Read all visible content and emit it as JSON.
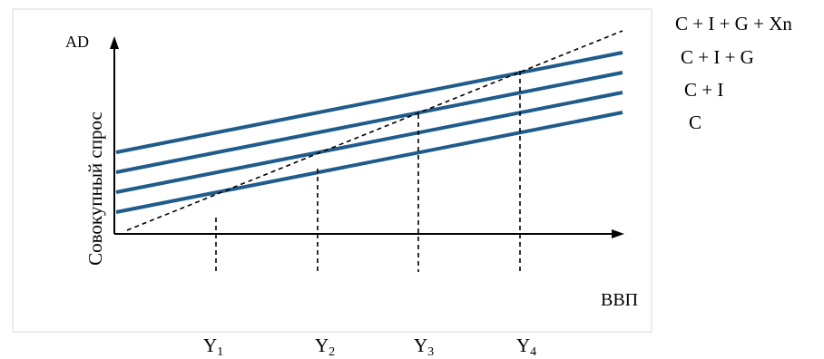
{
  "axes": {
    "y_short": "AD",
    "y_long": "Совокупный спрос",
    "x": "ВВП"
  },
  "series": [
    {
      "label": "C + I + G + Xn",
      "color": "#1f5c8c"
    },
    {
      "label": "C + I + G",
      "color": "#1f5c8c"
    },
    {
      "label": "C + I",
      "color": "#1f5c8c"
    },
    {
      "label": "C",
      "color": "#1f5c8c"
    }
  ],
  "x_markers": [
    {
      "main": "Y",
      "sub": "1"
    },
    {
      "main": "Y",
      "sub": "2"
    },
    {
      "main": "Y",
      "sub": "3"
    },
    {
      "main": "Y",
      "sub": "4"
    }
  ],
  "style": {
    "line_color": "#1f5c8c",
    "axis_color": "#000000",
    "frame_color": "#d9d9d9"
  }
}
